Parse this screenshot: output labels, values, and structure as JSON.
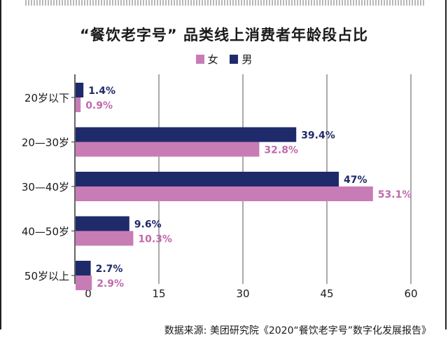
{
  "title": "“餐饮老字号” 品类线上消费者年龄段占比",
  "source": "数据来源: 美团研究院《2020“餐饮老字号”数字化发展报告》",
  "colors": {
    "female": "#c87cb6",
    "male": "#1f2a6b",
    "female_text": "#c06aaa",
    "male_text": "#1f2a6b"
  },
  "chart_data": {
    "type": "bar",
    "orientation": "horizontal",
    "categories": [
      "20岁以下",
      "20—30岁",
      "30—40岁",
      "40—50岁",
      "50岁以上"
    ],
    "series": [
      {
        "name": "男",
        "values": [
          1.4,
          39.4,
          47,
          9.6,
          2.7
        ],
        "labels": [
          "1.4%",
          "39.4%",
          "47%",
          "9.6%",
          "2.7%"
        ]
      },
      {
        "name": "女",
        "values": [
          0.9,
          32.8,
          53.1,
          10.3,
          2.9
        ],
        "labels": [
          "0.9%",
          "32.8%",
          "53.1%",
          "10.3%",
          "2.9%"
        ]
      }
    ],
    "legend": [
      "女",
      "男"
    ],
    "xlim": [
      0,
      60
    ],
    "xticks": [
      "0",
      "15",
      "30",
      "45",
      "60"
    ],
    "grid": true
  }
}
